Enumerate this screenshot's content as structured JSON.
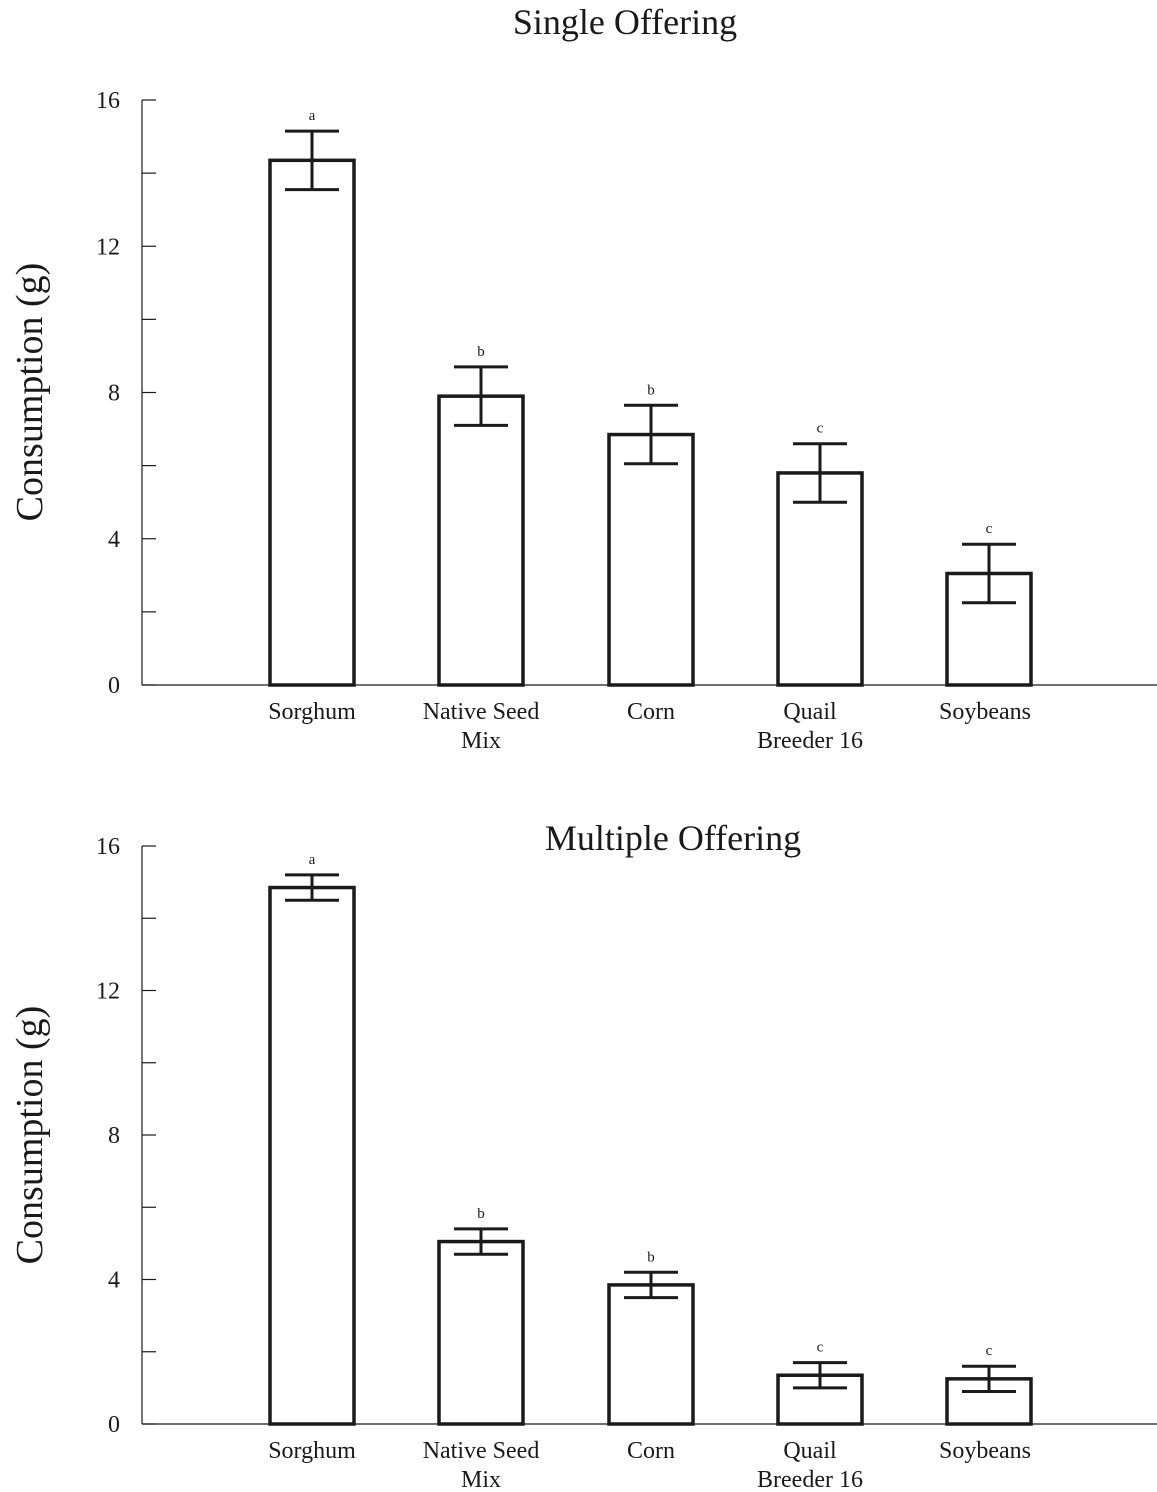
{
  "chart_data": [
    {
      "type": "bar",
      "title": "Single Offering",
      "xlabel": "",
      "ylabel": "Consumption (g)",
      "ylim": [
        0,
        16
      ],
      "yticks": [
        0,
        4,
        8,
        12,
        16
      ],
      "categories": [
        [
          "Sorghum"
        ],
        [
          "Native Seed",
          "Mix"
        ],
        [
          "Corn"
        ],
        [
          "Quail",
          "Breeder 16"
        ],
        [
          "Soybeans"
        ]
      ],
      "values": [
        14.35,
        7.9,
        6.85,
        5.8,
        3.05
      ],
      "errors": [
        0.8,
        0.8,
        0.8,
        0.8,
        0.8
      ],
      "significance": [
        "a",
        "b",
        "b",
        "c",
        "c"
      ],
      "grid": false,
      "legend": "none"
    },
    {
      "type": "bar",
      "title": "Multiple Offering",
      "xlabel": "",
      "ylabel": "Consumption (g)",
      "ylim": [
        0,
        16
      ],
      "yticks": [
        0,
        4,
        8,
        12,
        16
      ],
      "categories": [
        [
          "Sorghum"
        ],
        [
          "Native Seed",
          "Mix"
        ],
        [
          "Corn"
        ],
        [
          "Quail",
          "Breeder 16"
        ],
        [
          "Soybeans"
        ]
      ],
      "values": [
        14.85,
        5.05,
        3.85,
        1.35,
        1.25
      ],
      "errors": [
        0.35,
        0.35,
        0.35,
        0.35,
        0.35
      ],
      "significance": [
        "a",
        "b",
        "b",
        "c",
        "c"
      ],
      "grid": false,
      "legend": "none"
    }
  ]
}
